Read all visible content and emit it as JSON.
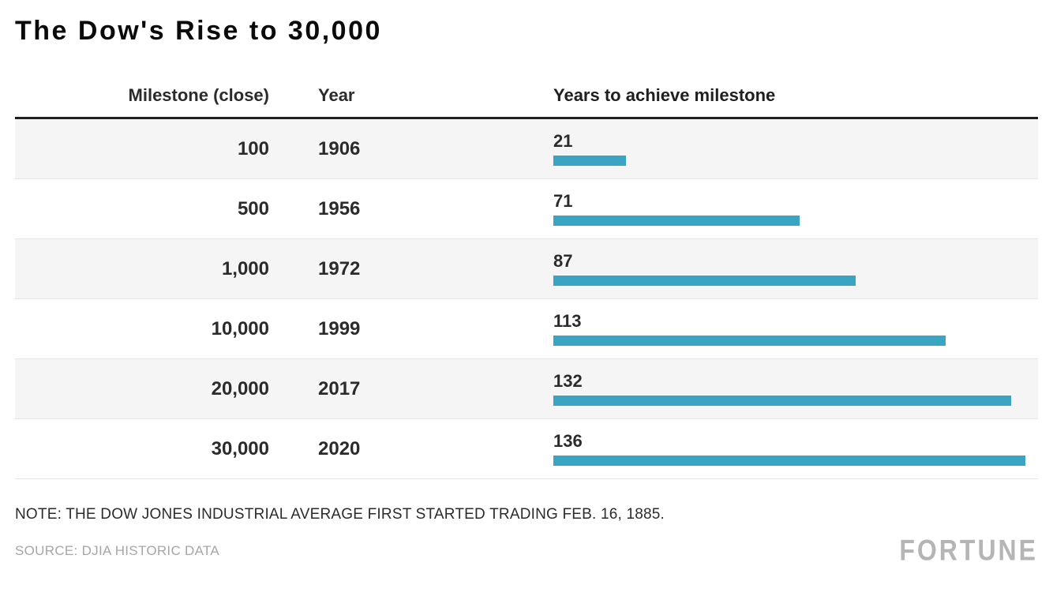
{
  "title": "The Dow's Rise to 30,000",
  "chart_data": {
    "type": "bar",
    "title": "The Dow's Rise to 30,000",
    "columns": {
      "milestone": "Milestone (close)",
      "year": "Year",
      "years": "Years to achieve milestone"
    },
    "rows": [
      {
        "milestone": "100",
        "year": "1906",
        "years": 21
      },
      {
        "milestone": "500",
        "year": "1956",
        "years": 71
      },
      {
        "milestone": "1,000",
        "year": "1972",
        "years": 87
      },
      {
        "milestone": "10,000",
        "year": "1999",
        "years": 113
      },
      {
        "milestone": "20,000",
        "year": "2017",
        "years": 132
      },
      {
        "milestone": "30,000",
        "year": "2020",
        "years": 136
      }
    ],
    "xlim": [
      0,
      136
    ],
    "max_value": 136,
    "bar_color": "#3aa5c2",
    "legend": "none",
    "grid": "off"
  },
  "note": "NOTE: THE DOW JONES INDUSTRIAL AVERAGE FIRST STARTED TRADING FEB. 16, 1885.",
  "source": "SOURCE: DJIA HISTORIC DATA",
  "logo": "FORTUNE"
}
